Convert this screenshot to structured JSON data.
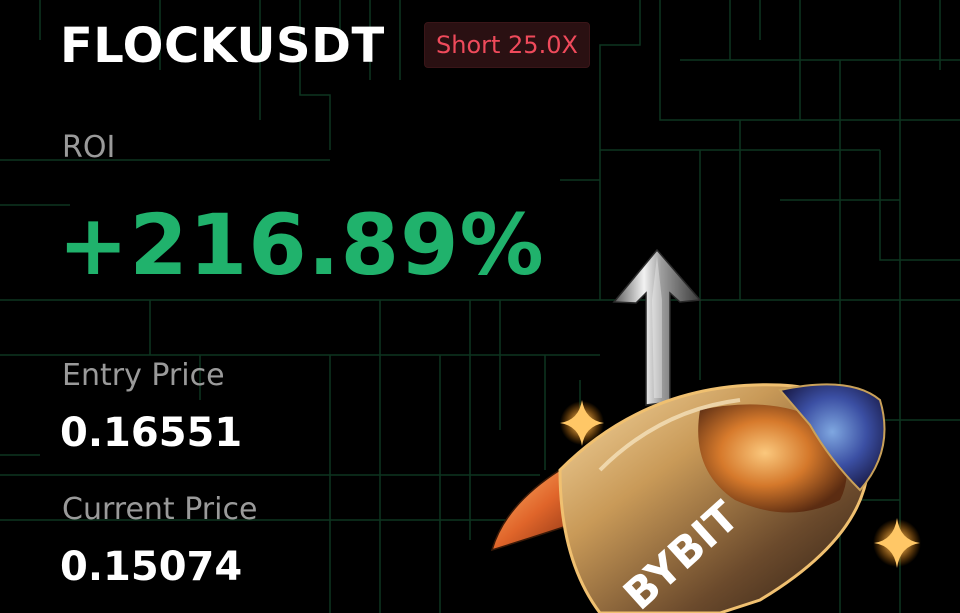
{
  "position": {
    "symbol": "FLOCKUSDT",
    "side_leverage": "Short 25.0X"
  },
  "roi": {
    "label": "ROI",
    "value": "+216.89%"
  },
  "entry": {
    "label": "Entry Price",
    "value": "0.16551"
  },
  "current": {
    "label": "Current Price",
    "value": "0.15074"
  },
  "branding": {
    "logo_text": "BYBIT"
  },
  "colors": {
    "background": "#000000",
    "profit_green": "#20b26c",
    "short_red": "#ef4a5b",
    "label_gray": "#9a9a9a",
    "grid_green": "#0e3a22"
  },
  "icons": {
    "arrow": "up-arrow-icon",
    "rocket": "rocket-icon",
    "sparkle": "sparkle-icon"
  }
}
